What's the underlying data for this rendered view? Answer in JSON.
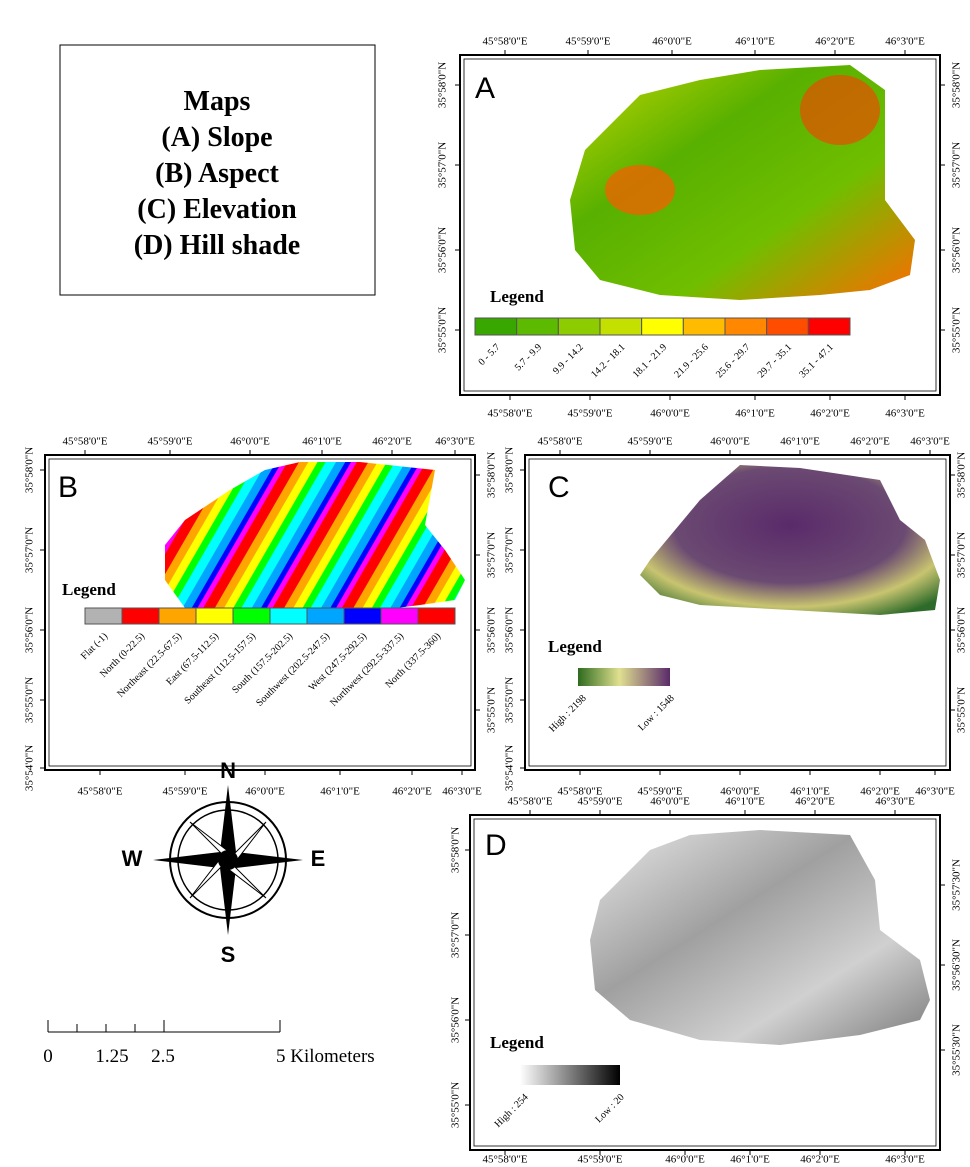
{
  "title_box": {
    "lines": [
      "Maps",
      "(A) Slope",
      "(B) Aspect",
      "(C) Elevation",
      "(D) Hill shade"
    ]
  },
  "maps": [
    {
      "label": "A",
      "ticks": {
        "top": [
          "45°58'0\"E",
          "45°59'0\"E",
          "46°0'0\"E",
          "46°1'0\"E",
          "46°2'0\"E",
          "46°3'0\"E"
        ],
        "bottom": [
          "45°58'0\"E",
          "45°59'0\"E",
          "46°0'0\"E",
          "46°1'0\"E",
          "46°2'0\"E",
          "46°3'0\"E"
        ],
        "left": [
          "35°58'0\"N",
          "35°57'0\"N",
          "35°56'0\"N",
          "35°55'0\"N"
        ],
        "right": [
          "35°58'0\"N",
          "35°57'0\"N",
          "35°56'0\"N",
          "35°55'0\"N"
        ]
      },
      "legend": {
        "title": "Legend",
        "items": [
          "0 - 5.7",
          "5.7 - 9.9",
          "9.9 - 14.2",
          "14.2 - 18.1",
          "18.1 - 21.9",
          "21.9 - 25.6",
          "25.6 - 29.7",
          "29.7 - 35.1",
          "35.1 - 47.1"
        ],
        "colors": [
          "#38a800",
          "#5cba00",
          "#8ccc00",
          "#c3e000",
          "#ffff00",
          "#ffbb00",
          "#ff8800",
          "#ff4d00",
          "#ff0000"
        ]
      }
    },
    {
      "label": "B",
      "ticks": {
        "top": [
          "45°58'0\"E",
          "45°59'0\"E",
          "46°0'0\"E",
          "46°1'0\"E",
          "46°2'0\"E",
          "46°3'0\"E"
        ],
        "bottom": [
          "45°58'0\"E",
          "45°59'0\"E",
          "46°0'0\"E",
          "46°1'0\"E",
          "46°2'0\"E",
          "46°3'0\"E"
        ],
        "left": [
          "35°58'0\"N",
          "35°57'0\"N",
          "35°56'0\"N",
          "35°55'0\"N",
          "35°54'0\"N"
        ],
        "right": [
          "35°58'0\"N",
          "35°57'0\"N",
          "35°56'0\"N",
          "35°55'0\"N"
        ]
      },
      "legend": {
        "title": "Legend",
        "items": [
          "Flat (-1)",
          "North (0-22.5)",
          "Northeast (22.5-67.5)",
          "East (67.5-112.5)",
          "Southeast (112.5-157.5)",
          "South (157.5-202.5)",
          "Southwest (202.5-247.5)",
          "West (247.5-292.5)",
          "Northwest (292.5-337.5)",
          "North (337.5-360)"
        ],
        "colors": [
          "#b2b2b2",
          "#ff0000",
          "#ffa500",
          "#ffff00",
          "#00ff00",
          "#00ffff",
          "#00a5ff",
          "#0000ff",
          "#ff00ff",
          "#ff0000"
        ]
      }
    },
    {
      "label": "C",
      "ticks": {
        "top": [
          "45°58'0\"E",
          "45°59'0\"E",
          "46°0'0\"E",
          "46°1'0\"E",
          "46°2'0\"E",
          "46°3'0\"E"
        ],
        "bottom": [
          "45°58'0\"E",
          "45°59'0\"E",
          "46°0'0\"E",
          "46°1'0\"E",
          "46°2'0\"E",
          "46°3'0\"E"
        ],
        "left": [
          "35°58'0\"N",
          "35°57'0\"N",
          "35°56'0\"N",
          "35°55'0\"N",
          "35°54'0\"N"
        ],
        "right": [
          "35°58'0\"N",
          "35°57'0\"N",
          "35°56'0\"N",
          "35°55'0\"N"
        ]
      },
      "legend": {
        "title": "Legend",
        "high": "High : 2198",
        "low": "Low : 1548"
      }
    },
    {
      "label": "D",
      "ticks": {
        "top": [
          "45°58'0\"E",
          "45°59'0\"E",
          "46°0'0\"E",
          "46°1'0\"E",
          "46°2'0\"E",
          "46°3'0\"E"
        ],
        "bottom": [
          "45°58'0\"E",
          "45°59'0\"E",
          "46°0'0\"E",
          "46°1'0\"E",
          "46°2'0\"E",
          "46°3'0\"E"
        ],
        "left": [
          "35°58'0\"N",
          "35°57'0\"N",
          "35°56'0\"N",
          "35°55'0\"N"
        ],
        "right": [
          "35°57'30\"N",
          "35°56'30\"N",
          "35°55'30\"N"
        ]
      },
      "legend": {
        "title": "Legend",
        "high": "High : 254",
        "low": "Low : 20"
      }
    }
  ],
  "compass": {
    "n": "N",
    "s": "S",
    "e": "E",
    "w": "W"
  },
  "scale_bar": {
    "labels": [
      "0",
      "1.25",
      "2.5",
      "5 Kilometers"
    ]
  }
}
